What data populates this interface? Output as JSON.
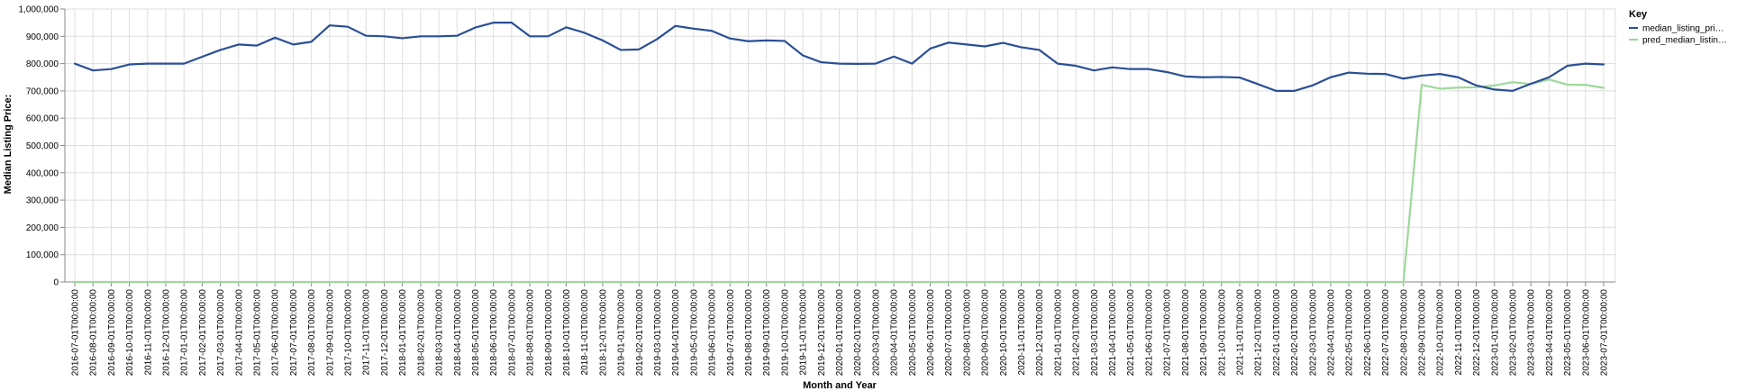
{
  "chart_data": {
    "type": "line",
    "title": "",
    "xlabel": "Month and Year",
    "ylabel": "Median Listing Price:",
    "ylim": [
      0,
      1000000
    ],
    "yticks": [
      0,
      100000,
      200000,
      300000,
      400000,
      500000,
      600000,
      700000,
      800000,
      900000,
      1000000
    ],
    "ytick_labels": [
      "0",
      "100,000",
      "200,000",
      "300,000",
      "400,000",
      "500,000",
      "600,000",
      "700,000",
      "800,000",
      "900,000",
      "1,000,000"
    ],
    "grid": true,
    "legend_title": "Key",
    "legend_position": "top-right",
    "categories": [
      "2016-07-01T00:00:00",
      "2016-08-01T00:00:00",
      "2016-09-01T00:00:00",
      "2016-10-01T00:00:00",
      "2016-11-01T00:00:00",
      "2016-12-01T00:00:00",
      "2017-01-01T00:00:00",
      "2017-02-01T00:00:00",
      "2017-03-01T00:00:00",
      "2017-04-01T00:00:00",
      "2017-05-01T00:00:00",
      "2017-06-01T00:00:00",
      "2017-07-01T00:00:00",
      "2017-08-01T00:00:00",
      "2017-09-01T00:00:00",
      "2017-10-01T00:00:00",
      "2017-11-01T00:00:00",
      "2017-12-01T00:00:00",
      "2018-01-01T00:00:00",
      "2018-02-01T00:00:00",
      "2018-03-01T00:00:00",
      "2018-04-01T00:00:00",
      "2018-05-01T00:00:00",
      "2018-06-01T00:00:00",
      "2018-07-01T00:00:00",
      "2018-08-01T00:00:00",
      "2018-09-01T00:00:00",
      "2018-10-01T00:00:00",
      "2018-11-01T00:00:00",
      "2018-12-01T00:00:00",
      "2019-01-01T00:00:00",
      "2019-02-01T00:00:00",
      "2019-03-01T00:00:00",
      "2019-04-01T00:00:00",
      "2019-05-01T00:00:00",
      "2019-06-01T00:00:00",
      "2019-07-01T00:00:00",
      "2019-08-01T00:00:00",
      "2019-09-01T00:00:00",
      "2019-10-01T00:00:00",
      "2019-11-01T00:00:00",
      "2019-12-01T00:00:00",
      "2020-01-01T00:00:00",
      "2020-02-01T00:00:00",
      "2020-03-01T00:00:00",
      "2020-04-01T00:00:00",
      "2020-05-01T00:00:00",
      "2020-06-01T00:00:00",
      "2020-07-01T00:00:00",
      "2020-08-01T00:00:00",
      "2020-09-01T00:00:00",
      "2020-10-01T00:00:00",
      "2020-11-01T00:00:00",
      "2020-12-01T00:00:00",
      "2021-01-01T00:00:00",
      "2021-02-01T00:00:00",
      "2021-03-01T00:00:00",
      "2021-04-01T00:00:00",
      "2021-05-01T00:00:00",
      "2021-06-01T00:00:00",
      "2021-07-01T00:00:00",
      "2021-08-01T00:00:00",
      "2021-09-01T00:00:00",
      "2021-10-01T00:00:00",
      "2021-11-01T00:00:00",
      "2021-12-01T00:00:00",
      "2022-01-01T00:00:00",
      "2022-02-01T00:00:00",
      "2022-03-01T00:00:00",
      "2022-04-01T00:00:00",
      "2022-05-01T00:00:00",
      "2022-06-01T00:00:00",
      "2022-07-01T00:00:00",
      "2022-08-01T00:00:00",
      "2022-09-01T00:00:00",
      "2022-10-01T00:00:00",
      "2022-11-01T00:00:00",
      "2022-12-01T00:00:00",
      "2023-01-01T00:00:00",
      "2023-02-01T00:00:00",
      "2023-03-01T00:00:00",
      "2023-04-01T00:00:00",
      "2023-05-01T00:00:00",
      "2023-06-01T00:00:00",
      "2023-07-01T00:00:00"
    ],
    "series": [
      {
        "name": "median_listing_price",
        "legend_label": "median_listing_pri…",
        "color": "#2b4f96",
        "values": [
          800000,
          775000,
          780000,
          797000,
          800000,
          800000,
          800000,
          825000,
          850000,
          870000,
          866000,
          895000,
          870000,
          880000,
          940000,
          935000,
          902000,
          900000,
          893000,
          900000,
          900000,
          902000,
          932000,
          950000,
          950000,
          900000,
          900000,
          933000,
          913000,
          885000,
          850000,
          852000,
          890000,
          938000,
          928000,
          920000,
          892000,
          882000,
          885000,
          883000,
          830000,
          805000,
          800000,
          799000,
          800000,
          826000,
          800000,
          855000,
          877000,
          870000,
          863000,
          876000,
          860000,
          850000,
          800000,
          792000,
          775000,
          786000,
          780000,
          780000,
          769000,
          753000,
          750000,
          751000,
          749000,
          725000,
          700000,
          700000,
          720000,
          750000,
          767000,
          763000,
          762000,
          745000,
          756000,
          762000,
          750000,
          720000,
          705000,
          700000,
          726000,
          750000,
          792000,
          800000,
          797000
        ]
      },
      {
        "name": "pred_median_listing_price",
        "legend_label": "pred_median_listin…",
        "color": "#9fd89a",
        "values": [
          0,
          0,
          0,
          0,
          0,
          0,
          0,
          0,
          0,
          0,
          0,
          0,
          0,
          0,
          0,
          0,
          0,
          0,
          0,
          0,
          0,
          0,
          0,
          0,
          0,
          0,
          0,
          0,
          0,
          0,
          0,
          0,
          0,
          0,
          0,
          0,
          0,
          0,
          0,
          0,
          0,
          0,
          0,
          0,
          0,
          0,
          0,
          0,
          0,
          0,
          0,
          0,
          0,
          0,
          0,
          0,
          0,
          0,
          0,
          0,
          0,
          0,
          0,
          0,
          0,
          0,
          0,
          0,
          0,
          0,
          0,
          0,
          0,
          0,
          722000,
          708000,
          712000,
          713000,
          720000,
          732000,
          725000,
          742000,
          723000,
          722000,
          711000
        ]
      }
    ]
  }
}
